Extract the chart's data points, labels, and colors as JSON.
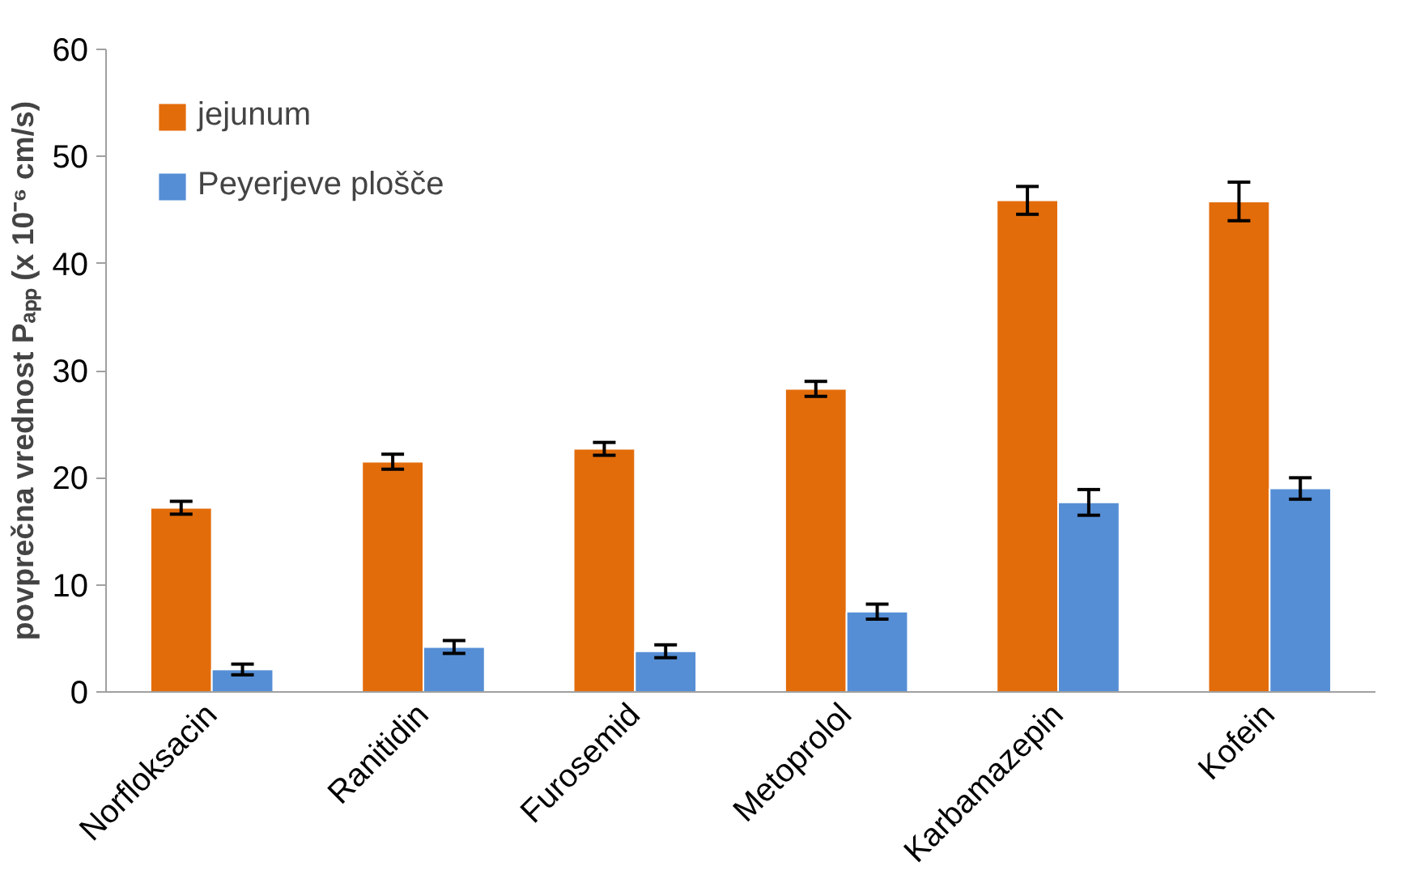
{
  "chart_data": {
    "type": "bar",
    "ylabel": "povprečna vrednost Pₐₚₚ (x 10⁻⁶ cm/s)",
    "categories": [
      "Norfloksacin",
      "Ranitidin",
      "Furosemid",
      "Metoprolol",
      "Karbamazepin",
      "Kofein"
    ],
    "series": [
      {
        "name": "jejunum",
        "color": "#e36c0a",
        "values": [
          17.2,
          21.5,
          22.7,
          28.3,
          45.9,
          45.8
        ],
        "errors": [
          0.6,
          0.7,
          0.6,
          0.7,
          1.3,
          1.8
        ]
      },
      {
        "name": "Peyerjeve plošče",
        "color": "#558ed5",
        "values": [
          2.1,
          4.2,
          3.8,
          7.5,
          17.7,
          19.0
        ],
        "errors": [
          0.5,
          0.6,
          0.6,
          0.7,
          1.2,
          1.0
        ]
      }
    ],
    "ylim": [
      0,
      60
    ],
    "yticks": [
      0,
      10,
      20,
      30,
      40,
      50,
      60
    ],
    "grid": false,
    "legend": "top left"
  }
}
